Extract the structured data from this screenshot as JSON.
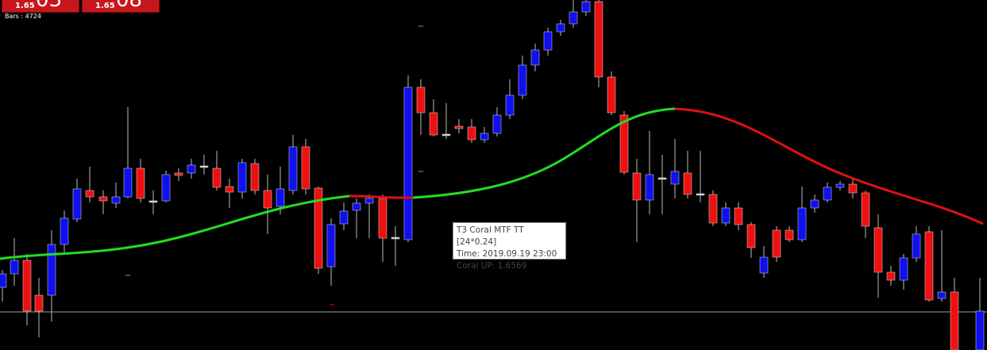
{
  "header": {
    "boxes": [
      {
        "label": "1.65",
        "big": "03"
      },
      {
        "label": "1.65",
        "big": "08"
      }
    ],
    "bars": "Bars : 4724"
  },
  "tooltip": {
    "lines": [
      "T3 Coral MTF TT [24*0.24]",
      "Time: 2019.09.19 23:00",
      "Coral UP: 1.6569"
    ]
  }
}
